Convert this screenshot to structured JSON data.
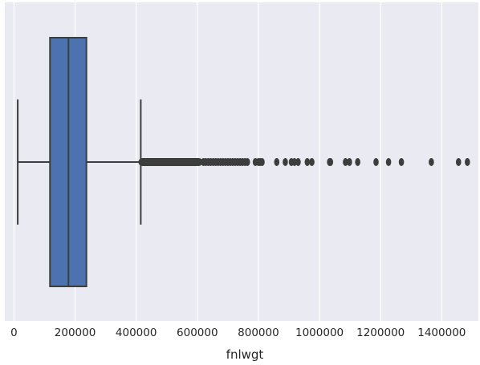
{
  "chart_data": {
    "type": "box",
    "orientation": "horizontal",
    "title": "",
    "xlabel": "fnlwgt",
    "ylabel": "",
    "xlim": [
      -30000,
      1520000
    ],
    "xticks": [
      0,
      200000,
      400000,
      600000,
      800000,
      1000000,
      1200000,
      1400000
    ],
    "xtick_labels": [
      "0",
      "200000",
      "400000",
      "600000",
      "800000",
      "1000000",
      "1200000",
      "1400000"
    ],
    "grid": true,
    "colors": {
      "box_fill": "#4c72b0",
      "line": "#3d3d3d",
      "plot_background": "#eaeaf2",
      "grid": "#ffffff",
      "text": "#262626"
    },
    "box": {
      "whisker_low": 12285,
      "q1": 117827,
      "median": 178356,
      "q3": 237051,
      "whisker_high": 415000
    },
    "outlier_cluster": [
      415000,
      610000
    ],
    "outliers": [
      620000,
      628000,
      636000,
      644000,
      652000,
      660000,
      668000,
      676000,
      684000,
      692000,
      700000,
      708000,
      716000,
      724000,
      732000,
      740000,
      748000,
      756000,
      764000,
      790000,
      800000,
      806000,
      812000,
      860000,
      888000,
      908000,
      918000,
      930000,
      960000,
      975000,
      1033000,
      1036000,
      1085000,
      1098000,
      1125000,
      1185000,
      1226000,
      1268000,
      1366000,
      1455000,
      1484000
    ]
  }
}
